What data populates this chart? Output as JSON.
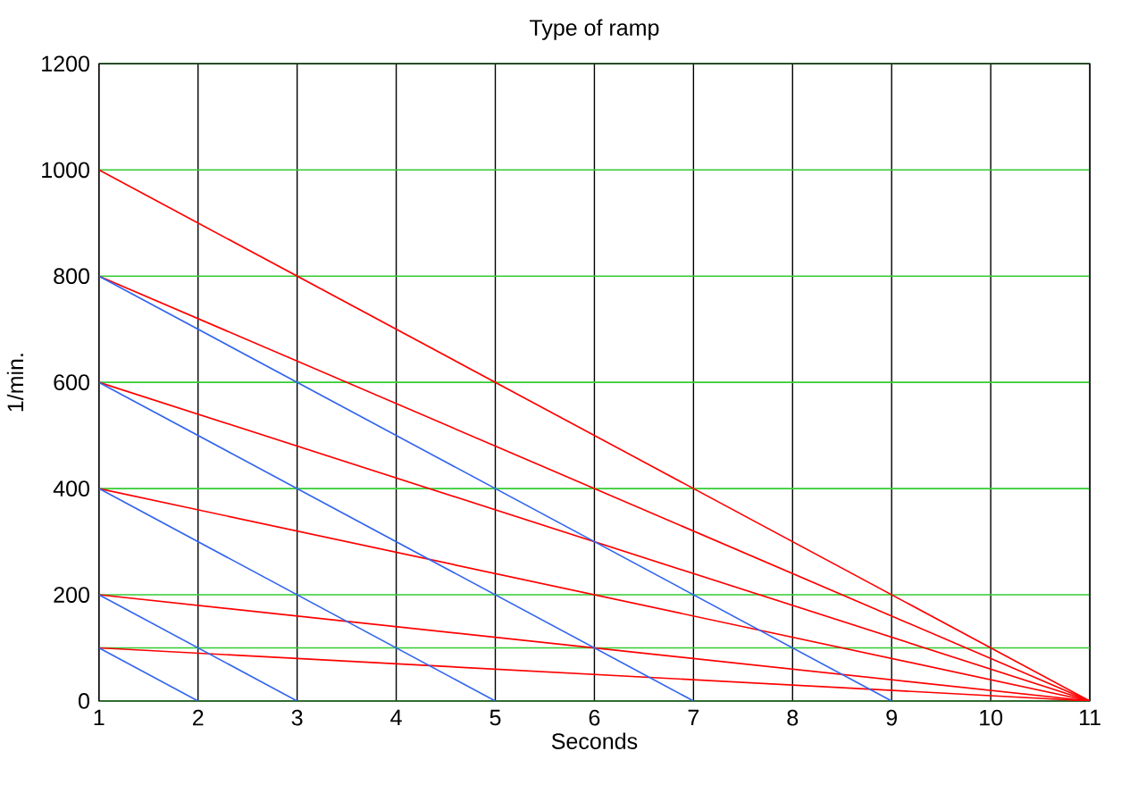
{
  "chart_data": {
    "type": "line",
    "title": "Type of ramp",
    "xlabel": "Seconds",
    "ylabel": "1/min.",
    "xlim": [
      1,
      11
    ],
    "ylim": [
      0,
      1200
    ],
    "xticks": [
      1,
      2,
      3,
      4,
      5,
      6,
      7,
      8,
      9,
      10,
      11
    ],
    "yticks": [
      0,
      200,
      400,
      600,
      800,
      1000,
      1200
    ],
    "grid": true,
    "marker": "none",
    "line_style": "solid",
    "ref_lines": [
      {
        "axis": "y",
        "value": 100,
        "color": "#33cc33"
      }
    ],
    "series": [
      {
        "color": "#ff0000",
        "x": [
          1,
          11
        ],
        "values": [
          1000,
          0
        ]
      },
      {
        "color": "#ff0000",
        "x": [
          1,
          11
        ],
        "values": [
          800,
          0
        ]
      },
      {
        "color": "#ff0000",
        "x": [
          1,
          11
        ],
        "values": [
          600,
          0
        ]
      },
      {
        "color": "#ff0000",
        "x": [
          1,
          11
        ],
        "values": [
          400,
          0
        ]
      },
      {
        "color": "#ff0000",
        "x": [
          1,
          11
        ],
        "values": [
          200,
          0
        ]
      },
      {
        "color": "#ff0000",
        "x": [
          1,
          11
        ],
        "values": [
          100,
          0
        ]
      },
      {
        "color": "#3366ee",
        "x": [
          1,
          9
        ],
        "values": [
          800,
          0
        ]
      },
      {
        "color": "#3366ee",
        "x": [
          1,
          7
        ],
        "values": [
          600,
          0
        ]
      },
      {
        "color": "#3366ee",
        "x": [
          1,
          5
        ],
        "values": [
          400,
          0
        ]
      },
      {
        "color": "#3366ee",
        "x": [
          1,
          3
        ],
        "values": [
          200,
          0
        ]
      },
      {
        "color": "#3366ee",
        "x": [
          1,
          2
        ],
        "values": [
          100,
          0
        ]
      }
    ]
  }
}
